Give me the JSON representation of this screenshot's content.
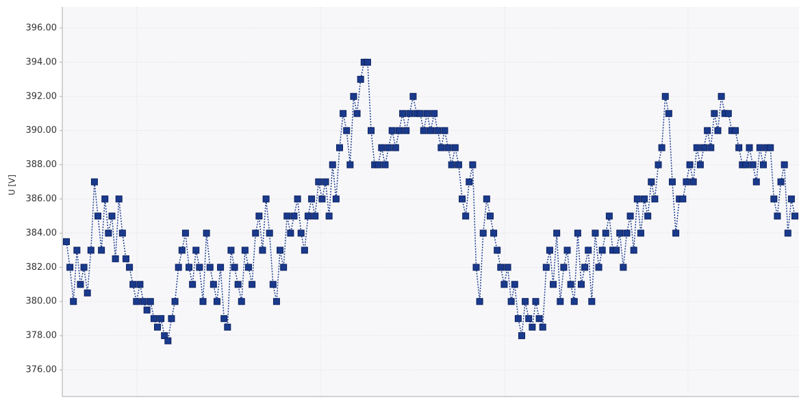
{
  "chart_data": {
    "type": "line",
    "y_label": "U [V]",
    "ylim": [
      374.44,
      397.24
    ],
    "yticks": [
      {
        "value": 376,
        "label": "376.00"
      },
      {
        "value": 378,
        "label": "378.00"
      },
      {
        "value": 380,
        "label": "380.00"
      },
      {
        "value": 382,
        "label": "382.00"
      },
      {
        "value": 384,
        "label": "384.00"
      },
      {
        "value": 386,
        "label": "386.00"
      },
      {
        "value": 388,
        "label": "388.00"
      },
      {
        "value": 390,
        "label": "390.00"
      },
      {
        "value": 392,
        "label": "392.00"
      },
      {
        "value": 394,
        "label": "394.00"
      },
      {
        "value": 396,
        "label": "396.00"
      }
    ],
    "grid": true,
    "color": "#1a3a8c",
    "values": [
      383.5,
      382,
      380,
      383,
      381,
      382,
      380.5,
      383,
      387,
      385,
      383,
      386,
      384,
      385,
      382.5,
      386,
      384,
      382.5,
      382,
      381,
      380,
      381,
      380,
      379.5,
      380,
      379,
      378.5,
      379,
      378,
      377.7,
      379,
      380,
      382,
      383,
      384,
      382,
      381,
      383,
      382,
      380,
      384,
      382,
      381,
      380,
      382,
      379,
      378.5,
      383,
      382,
      381,
      380,
      383,
      382,
      381,
      384,
      385,
      383,
      386,
      384,
      381,
      380,
      383,
      382,
      385,
      384,
      385,
      386,
      384,
      383,
      385,
      386,
      385,
      387,
      386,
      387,
      385,
      388,
      386,
      389,
      391,
      390,
      388,
      392,
      391,
      393,
      394,
      394,
      390,
      388,
      388,
      389,
      388,
      389,
      390,
      389,
      390,
      391,
      390,
      391,
      392,
      391,
      391,
      390,
      391,
      390,
      391,
      390,
      389,
      390,
      389,
      388,
      389,
      388,
      386,
      385,
      387,
      388,
      382,
      380,
      384,
      386,
      385,
      384,
      383,
      382,
      381,
      382,
      380,
      381,
      379,
      378,
      380,
      379,
      378.5,
      380,
      379,
      378.5,
      382,
      383,
      381,
      384,
      380,
      382,
      383,
      381,
      380,
      384,
      381,
      382,
      383,
      380,
      384,
      382,
      383,
      384,
      385,
      383,
      383,
      384,
      382,
      384,
      385,
      383,
      386,
      384,
      386,
      385,
      387,
      386,
      388,
      389,
      392,
      391,
      387,
      384,
      386,
      386,
      387,
      388,
      387,
      389,
      388,
      389,
      390,
      389,
      391,
      390,
      392,
      391,
      391,
      390,
      390,
      389,
      388,
      388,
      389,
      388,
      387,
      389,
      388,
      389,
      389,
      386,
      385,
      387,
      388,
      384,
      386,
      385
    ]
  }
}
